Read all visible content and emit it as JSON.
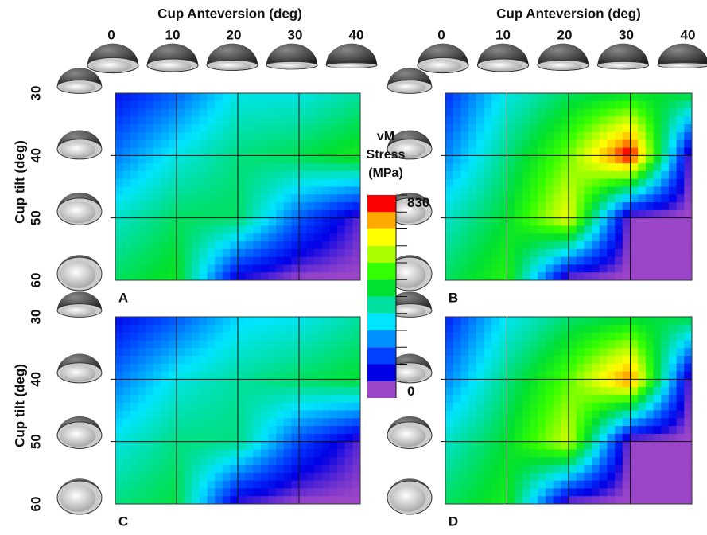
{
  "chart_data": [
    {
      "type": "heatmap",
      "panel_label": "A",
      "x_label": "Cup Anteversion (deg)",
      "y_label": "Cup tilt (deg)",
      "x": [
        0,
        10,
        20,
        30,
        40
      ],
      "y": [
        30,
        40,
        50,
        60
      ],
      "values": [
        [
          120,
          200,
          330,
          330,
          380
        ],
        [
          220,
          330,
          400,
          430,
          480
        ],
        [
          350,
          420,
          420,
          200,
          60
        ],
        [
          420,
          470,
          80,
          30,
          30
        ]
      ]
    },
    {
      "type": "heatmap",
      "panel_label": "B",
      "x_label": "Cup Anteversion (deg)",
      "x": [
        0,
        10,
        20,
        30,
        40
      ],
      "values": [
        [
          150,
          330,
          420,
          450,
          450
        ],
        [
          230,
          400,
          550,
          830,
          30
        ],
        [
          350,
          450,
          650,
          30,
          30
        ],
        [
          420,
          500,
          30,
          30,
          30
        ]
      ]
    },
    {
      "type": "heatmap",
      "panel_label": "C",
      "y_label": "Cup tilt (deg)",
      "y": [
        30,
        40,
        50,
        60
      ],
      "values": [
        [
          110,
          190,
          300,
          320,
          380
        ],
        [
          220,
          330,
          380,
          420,
          450
        ],
        [
          330,
          400,
          400,
          180,
          60
        ],
        [
          400,
          440,
          70,
          30,
          30
        ]
      ]
    },
    {
      "type": "heatmap",
      "panel_label": "D",
      "values": [
        [
          140,
          320,
          410,
          440,
          440
        ],
        [
          230,
          400,
          540,
          760,
          30
        ],
        [
          350,
          450,
          620,
          30,
          30
        ],
        [
          420,
          480,
          30,
          30,
          30
        ]
      ]
    }
  ],
  "colorbar": {
    "title_lines": [
      "vM",
      "Stress",
      "(MPa)"
    ],
    "clim": [
      0,
      830
    ],
    "ticks": [
      0,
      830
    ],
    "colors": [
      "#9b45c8",
      "#0000e6",
      "#0040ff",
      "#0090ff",
      "#00e5ff",
      "#00e0a0",
      "#00e030",
      "#33ff00",
      "#aaff00",
      "#ffff00",
      "#ffaa00",
      "#ff0000"
    ]
  }
}
